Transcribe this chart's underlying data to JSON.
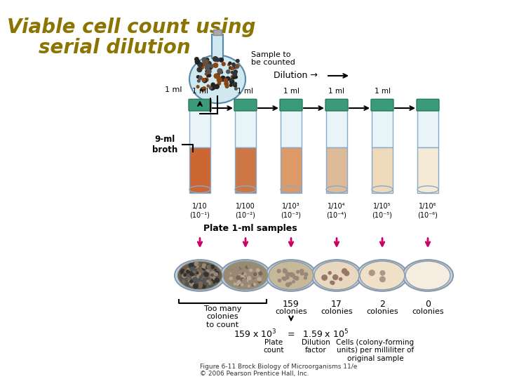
{
  "title_line1": "Viable cell count using",
  "title_line2": "serial dilution",
  "title_color": "#8B7500",
  "title_fontsize": 20,
  "background_color": "#ffffff",
  "figure_caption": "Figure 6-11 Brock Biology of Microorganisms 11/e\n© 2006 Pearson Prentice Hall, Inc.",
  "flask_label": "Sample to\nbe counted",
  "flask_volume": "1 ml",
  "dilution_label": "Dilution →",
  "tube_volumes": [
    "1 ml",
    "1 ml",
    "1 ml",
    "1 ml",
    "1 ml"
  ],
  "broth_label": "9-ml\nbroth",
  "dilution_factors": [
    "1/10\n(10⁻¹)",
    "1/100\n(10⁻²)",
    "1/10³\n(10⁻³)",
    "1/10⁴\n(10⁻⁴)",
    "1/10⁵\n(10⁻⁵)",
    "1/10⁶\n(10⁻⁶)"
  ],
  "plate_label": "Plate 1-ml samples",
  "colony_counts": [
    "Too many\ncolonies\nto count",
    "159\ncolonies",
    "17\ncolonies",
    "2\ncolonies",
    "0\ncolonies"
  ],
  "equation_line1": "159 x 10³   =   1.59 x 10⁵",
  "equation_labels": [
    "Plate\ncount",
    "Dilution\nfactor",
    "Cells (colony-forming\nunits) per milliliter of\noriginal sample"
  ],
  "tube_colors": [
    "#CC6633",
    "#CC7744",
    "#DD9966",
    "#DDBB99",
    "#EED9BB",
    "#F5EAD5"
  ],
  "plate_colors": [
    "#6B5B3E",
    "#9B8B6E",
    "#C8B89A",
    "#E8D8C0",
    "#F0E0C8",
    "#F5EDE0"
  ],
  "arrow_color": "#CC0066",
  "cap_color": "#3A9A7A"
}
